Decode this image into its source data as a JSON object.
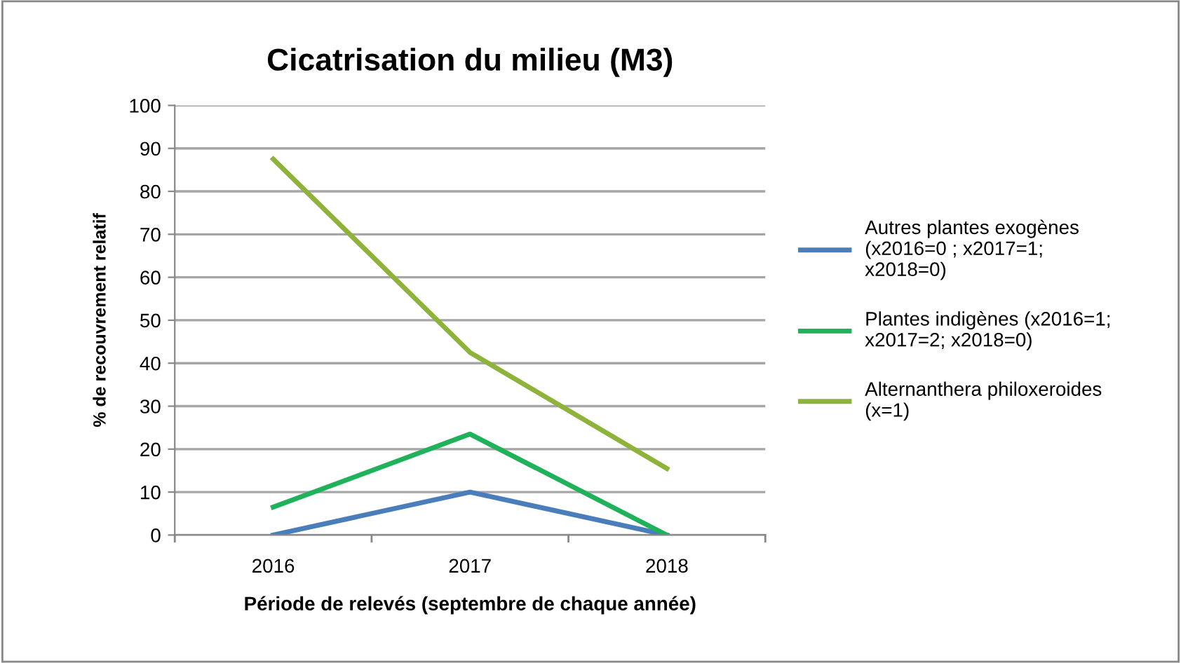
{
  "chart_data": {
    "type": "line",
    "title": "Cicatrisation du milieu (M3)",
    "xlabel": "Période de relevés (septembre de chaque année)",
    "ylabel": "% de recouvrement relatif",
    "categories": [
      "2016",
      "2017",
      "2018"
    ],
    "series": [
      {
        "name": "Autres plantes exogènes\n(x2016=0 ; x2017=1;\nx2018=0)",
        "color": "#4a7ebb",
        "values": [
          0,
          10,
          0
        ]
      },
      {
        "name": "Plantes indigènes (x2016=1;\nx2017=2; x2018=0)",
        "color": "#1fb25a",
        "values": [
          6.5,
          23.5,
          0
        ]
      },
      {
        "name": "Alternanthera philoxeroides\n(x=1)",
        "color": "#8db33a",
        "values": [
          87.5,
          42.5,
          15.5
        ]
      }
    ],
    "ylim": [
      0,
      100
    ],
    "yticks": [
      0,
      10,
      20,
      30,
      40,
      50,
      60,
      70,
      80,
      90,
      100
    ],
    "grid": "y",
    "legend": "right",
    "marker": "none",
    "line_style": "solid"
  }
}
